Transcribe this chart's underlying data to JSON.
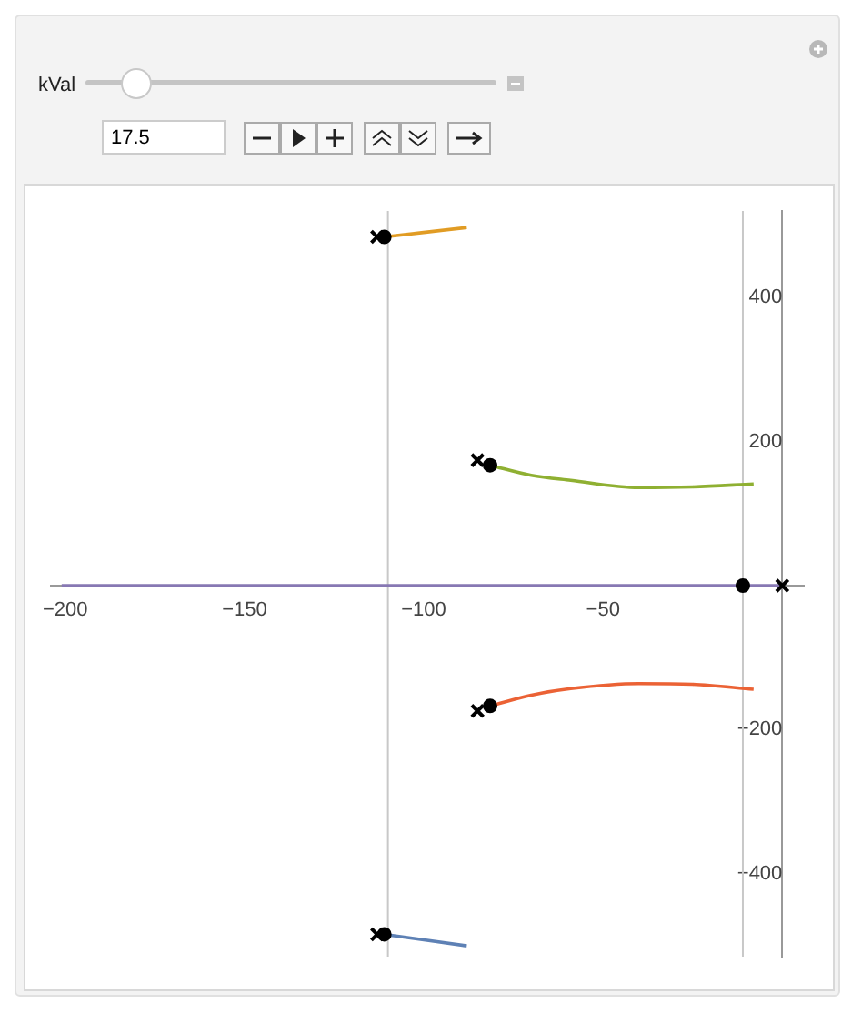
{
  "chart_data": {
    "type": "line",
    "xlim": [
      -204,
      6
    ],
    "ylim": [
      -515,
      520
    ],
    "xticks": [
      -200,
      -150,
      -100,
      -50
    ],
    "yticks": [
      -400,
      -200,
      200,
      400
    ],
    "grid": false,
    "legend": false,
    "annotations": [
      "kVal",
      "17.5"
    ],
    "ref_lines": [
      {
        "axis": "x",
        "value": -110,
        "color": "#c8c8c8"
      },
      {
        "axis": "x",
        "value": -11,
        "color": "#c8c8c8"
      }
    ],
    "series": [
      {
        "color": "#8778b3",
        "marker": "none",
        "x": [
          -201,
          0
        ],
        "values": [
          0,
          0
        ]
      },
      {
        "color": "#5e81b5",
        "marker": "none",
        "x": [
          -111,
          -88
        ],
        "values": [
          -484,
          -500
        ]
      },
      {
        "color": "#e19c24",
        "marker": "none",
        "x": [
          -111,
          -88
        ],
        "values": [
          484,
          497
        ]
      },
      {
        "color": "#8fb032",
        "marker": "none",
        "x": [
          -81.5,
          -70,
          -59,
          -40,
          -25,
          -8
        ],
        "values": [
          167,
          153,
          146,
          136,
          137,
          141
        ]
      },
      {
        "color": "#eb6235",
        "marker": "none",
        "x": [
          -81.5,
          -70,
          -59,
          -40,
          -25,
          -8
        ],
        "values": [
          -167,
          -152,
          -143,
          -136,
          -137,
          -144
        ]
      },
      {
        "type": "scatter",
        "color": "#000000",
        "marker": "cross",
        "x": [
          -113,
          -113,
          -85,
          -85,
          0
        ],
        "values": [
          484,
          -484,
          174,
          -174,
          0
        ]
      },
      {
        "type": "scatter",
        "color": "#000000",
        "marker": "circle",
        "x": [
          -111,
          -111,
          -81.5,
          -81.5,
          -11
        ],
        "values": [
          484,
          -484,
          167,
          -167,
          0
        ]
      }
    ]
  }
}
